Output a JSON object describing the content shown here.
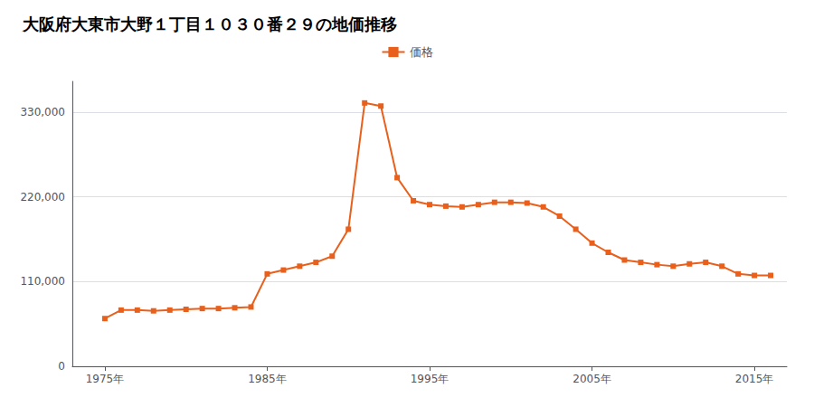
{
  "chart_data": {
    "type": "line",
    "title": "大阪府大東市大野１丁目１０３０番２９の地価推移",
    "x": [
      1975,
      1976,
      1977,
      1978,
      1979,
      1980,
      1981,
      1982,
      1983,
      1984,
      1985,
      1986,
      1987,
      1988,
      1989,
      1990,
      1991,
      1992,
      1993,
      1994,
      1995,
      1996,
      1997,
      1998,
      1999,
      2000,
      2001,
      2002,
      2003,
      2004,
      2005,
      2006,
      2007,
      2008,
      2009,
      2010,
      2011,
      2012,
      2013,
      2014,
      2015,
      2016
    ],
    "series": [
      {
        "name": "価格",
        "color": "#e8601c",
        "marker": "square",
        "values": [
          62000,
          73000,
          73000,
          72000,
          73000,
          74000,
          75000,
          75000,
          76000,
          77000,
          120000,
          125000,
          130000,
          135000,
          143000,
          178000,
          342000,
          338000,
          245000,
          215000,
          210000,
          208000,
          207000,
          210000,
          213000,
          213000,
          212000,
          207000,
          195000,
          178000,
          160000,
          148000,
          138000,
          135000,
          132000,
          130000,
          133000,
          135000,
          130000,
          120000,
          118000,
          118000
        ]
      }
    ],
    "xlim": [
      1973,
      2017
    ],
    "xticks": [
      {
        "value": 1975,
        "label": "1975年"
      },
      {
        "value": 1985,
        "label": "1985年"
      },
      {
        "value": 1995,
        "label": "1995年"
      },
      {
        "value": 2005,
        "label": "2005年"
      },
      {
        "value": 2015,
        "label": "2015年"
      }
    ],
    "ylim": [
      0,
      370000
    ],
    "yticks": [
      0,
      {
        "value": 110000,
        "label": "110,000"
      },
      {
        "value": 220000,
        "label": "220,000"
      },
      {
        "value": 330000,
        "label": "330,000"
      }
    ],
    "grid": "y",
    "legend": "top"
  }
}
